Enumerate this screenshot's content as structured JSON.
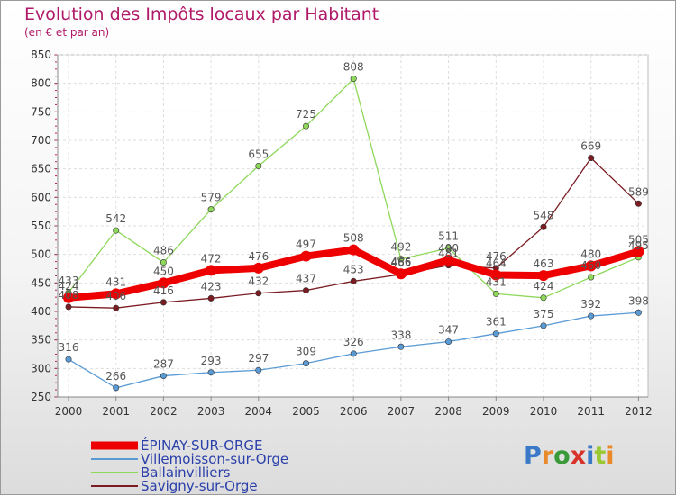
{
  "title": "Evolution des Impôts locaux par Habitant",
  "subtitle": "(en € et par an)",
  "logo": {
    "text": "Proxiti",
    "letter_colors": [
      "#3a78c8",
      "#e8892a",
      "#3a9a3a",
      "#d8322a",
      "#3a78c8",
      "#9ac832",
      "#e8892a"
    ]
  },
  "chart_data": {
    "type": "line",
    "title": "Evolution des Impôts locaux par Habitant",
    "subtitle": "(en € et par an)",
    "xlabel": "",
    "ylabel": "",
    "x": [
      "2000",
      "2001",
      "2002",
      "2003",
      "2004",
      "2005",
      "2006",
      "2007",
      "2008",
      "2009",
      "2010",
      "2011",
      "2012"
    ],
    "ylim": [
      250,
      850
    ],
    "yticks": [
      "250",
      "300",
      "350",
      "400",
      "450",
      "500",
      "550",
      "600",
      "650",
      "700",
      "750",
      "800",
      "850"
    ],
    "grid": true,
    "legend_position": "bottom-left",
    "series": [
      {
        "name": "ÉPINAY-SUR-ORGE",
        "color": "#ee0000",
        "values": [
          424,
          431,
          450,
          472,
          476,
          497,
          508,
          466,
          490,
          464,
          463,
          480,
          505
        ],
        "labels": [
          "424",
          "431",
          "450",
          "472",
          "476",
          "497",
          "508",
          "466",
          "490",
          "464",
          "463",
          "480",
          "505"
        ]
      },
      {
        "name": "Villemoisson-sur-Orge",
        "color": "#5a9bd5",
        "values": [
          316,
          266,
          287,
          293,
          297,
          309,
          326,
          338,
          347,
          361,
          375,
          392,
          398
        ],
        "labels": [
          "316",
          "266",
          "287",
          "293",
          "297",
          "309",
          "326",
          "338",
          "347",
          "361",
          "375",
          "392",
          "398"
        ]
      },
      {
        "name": "Ballainvilliers",
        "color": "#8ed85a",
        "values": [
          433,
          542,
          486,
          579,
          655,
          725,
          808,
          492,
          511,
          431,
          424,
          460,
          495
        ],
        "labels": [
          "433",
          "542",
          "486",
          "579",
          "655",
          "725",
          "808",
          "492",
          "511",
          "431",
          "424",
          "460",
          "495"
        ]
      },
      {
        "name": "Savigny-sur-Orge",
        "color": "#7a1c22",
        "values": [
          408,
          406,
          416,
          423,
          432,
          437,
          453,
          465,
          481,
          476,
          548,
          669,
          589
        ],
        "labels": [
          "408",
          "406",
          "416",
          "423",
          "432",
          "437",
          "453",
          "465",
          "481",
          "476",
          "548",
          "669",
          "589"
        ]
      }
    ]
  }
}
